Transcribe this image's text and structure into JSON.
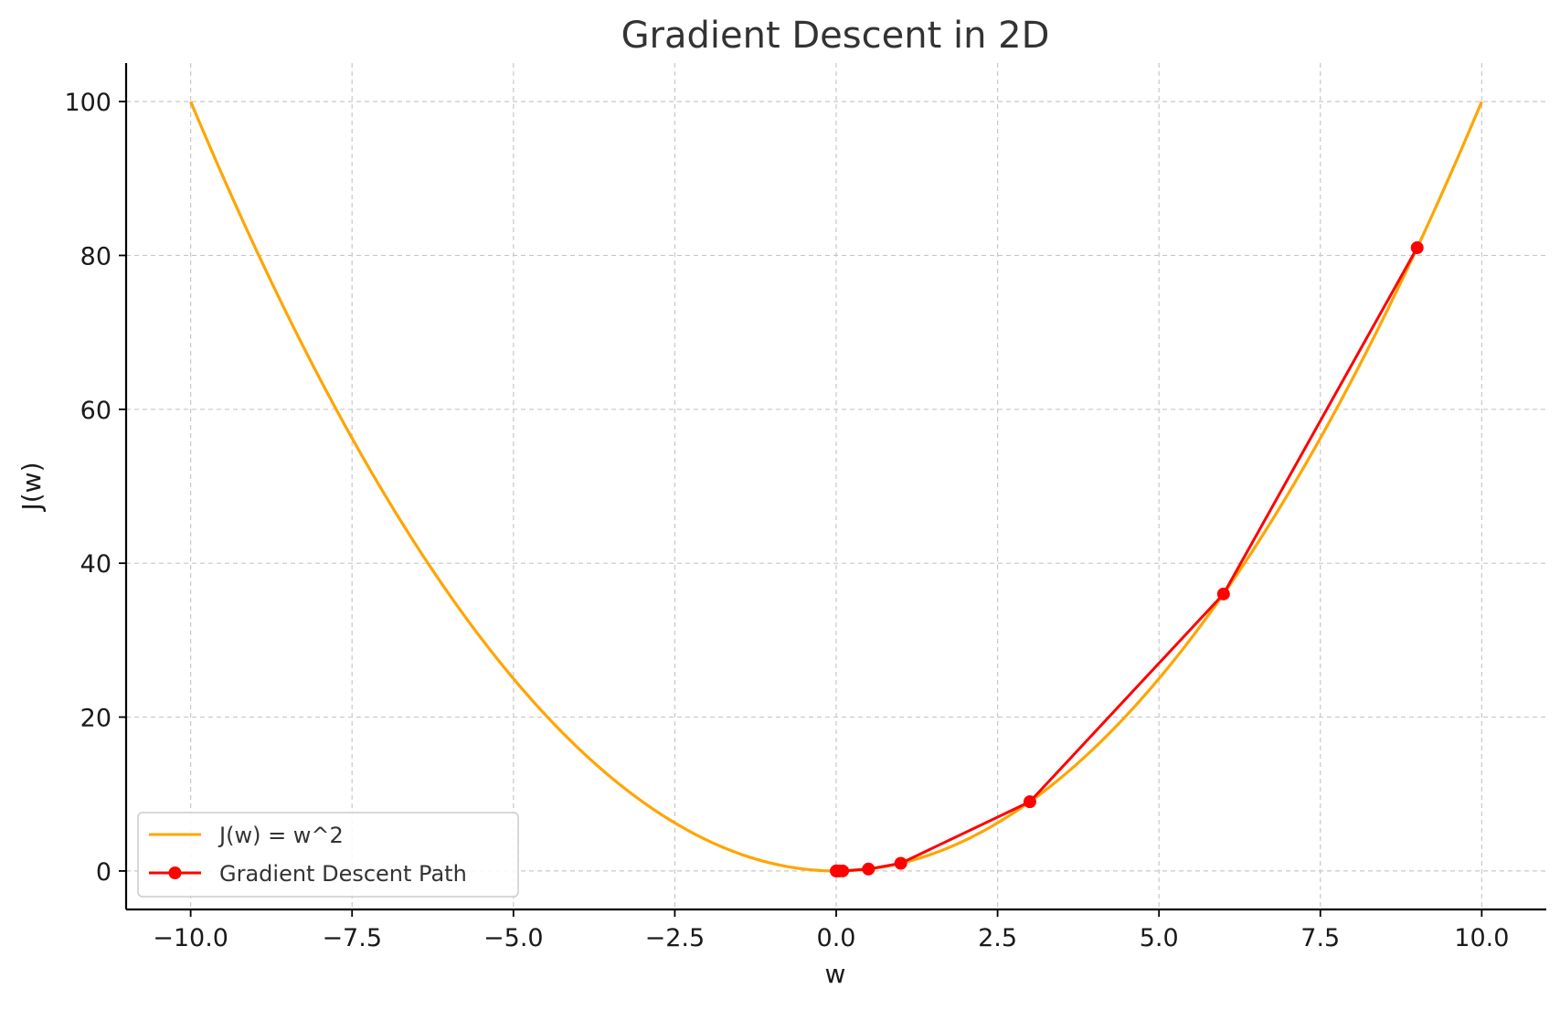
{
  "chart_data": {
    "type": "line",
    "title": "Gradient Descent in 2D",
    "xlabel": "w",
    "ylabel": "J(w)",
    "xlim": [
      -11.0,
      11.0
    ],
    "ylim": [
      -5.0,
      105.0
    ],
    "x_ticks": [
      -10.0,
      -7.5,
      -5.0,
      -2.5,
      0.0,
      2.5,
      5.0,
      7.5,
      10.0
    ],
    "x_tick_labels": [
      "−10.0",
      "−7.5",
      "−5.0",
      "−2.5",
      "0.0",
      "2.5",
      "5.0",
      "7.5",
      "10.0"
    ],
    "y_ticks": [
      0,
      20,
      40,
      60,
      80,
      100
    ],
    "y_tick_labels": [
      "0",
      "20",
      "40",
      "60",
      "80",
      "100"
    ],
    "grid": true,
    "legend_position": "lower-left",
    "series": [
      {
        "name": "J(w) = w^2",
        "kind": "curve",
        "function": "w^2",
        "x_range": [
          -10,
          10
        ],
        "color": "#FFA500",
        "marker": "none"
      },
      {
        "name": "Gradient Descent Path",
        "kind": "points",
        "color": "#FF0000",
        "marker": "circle",
        "x": [
          9,
          6,
          3,
          1,
          0.5,
          0.1,
          0.05,
          0.01,
          0
        ],
        "y": [
          81,
          36,
          9,
          1,
          0.25,
          0.01,
          0.0025,
          0.0001,
          0
        ]
      }
    ]
  }
}
